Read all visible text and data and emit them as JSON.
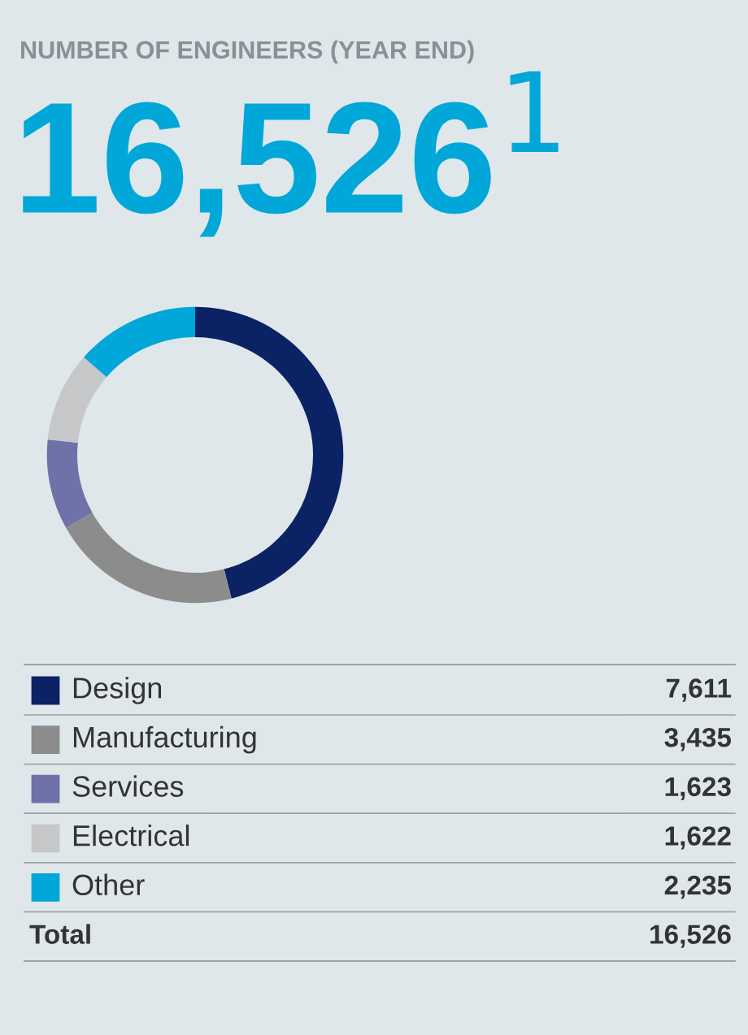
{
  "chart_data": {
    "type": "donut",
    "title": "NUMBER OF ENGINEERS (YEAR END)",
    "subtitle": "16,526$^{1}$",
    "categories": [
      "Design",
      "Manufacturing",
      "Services",
      "Electrical",
      "Other"
    ],
    "values": [
      7611,
      3435,
      1623,
      1622,
      2235
    ],
    "colors": [
      "#0b2265",
      "#8c8c8c",
      "#6e72a8",
      "#c6c7c9",
      "#00a7d8"
    ],
    "legend": "bottom",
    "value_labels": [
      "7,611",
      "3,435",
      "1,623",
      "1,622",
      "2,235"
    ],
    "annotations": [
      "Total",
      "16,526"
    ]
  }
}
